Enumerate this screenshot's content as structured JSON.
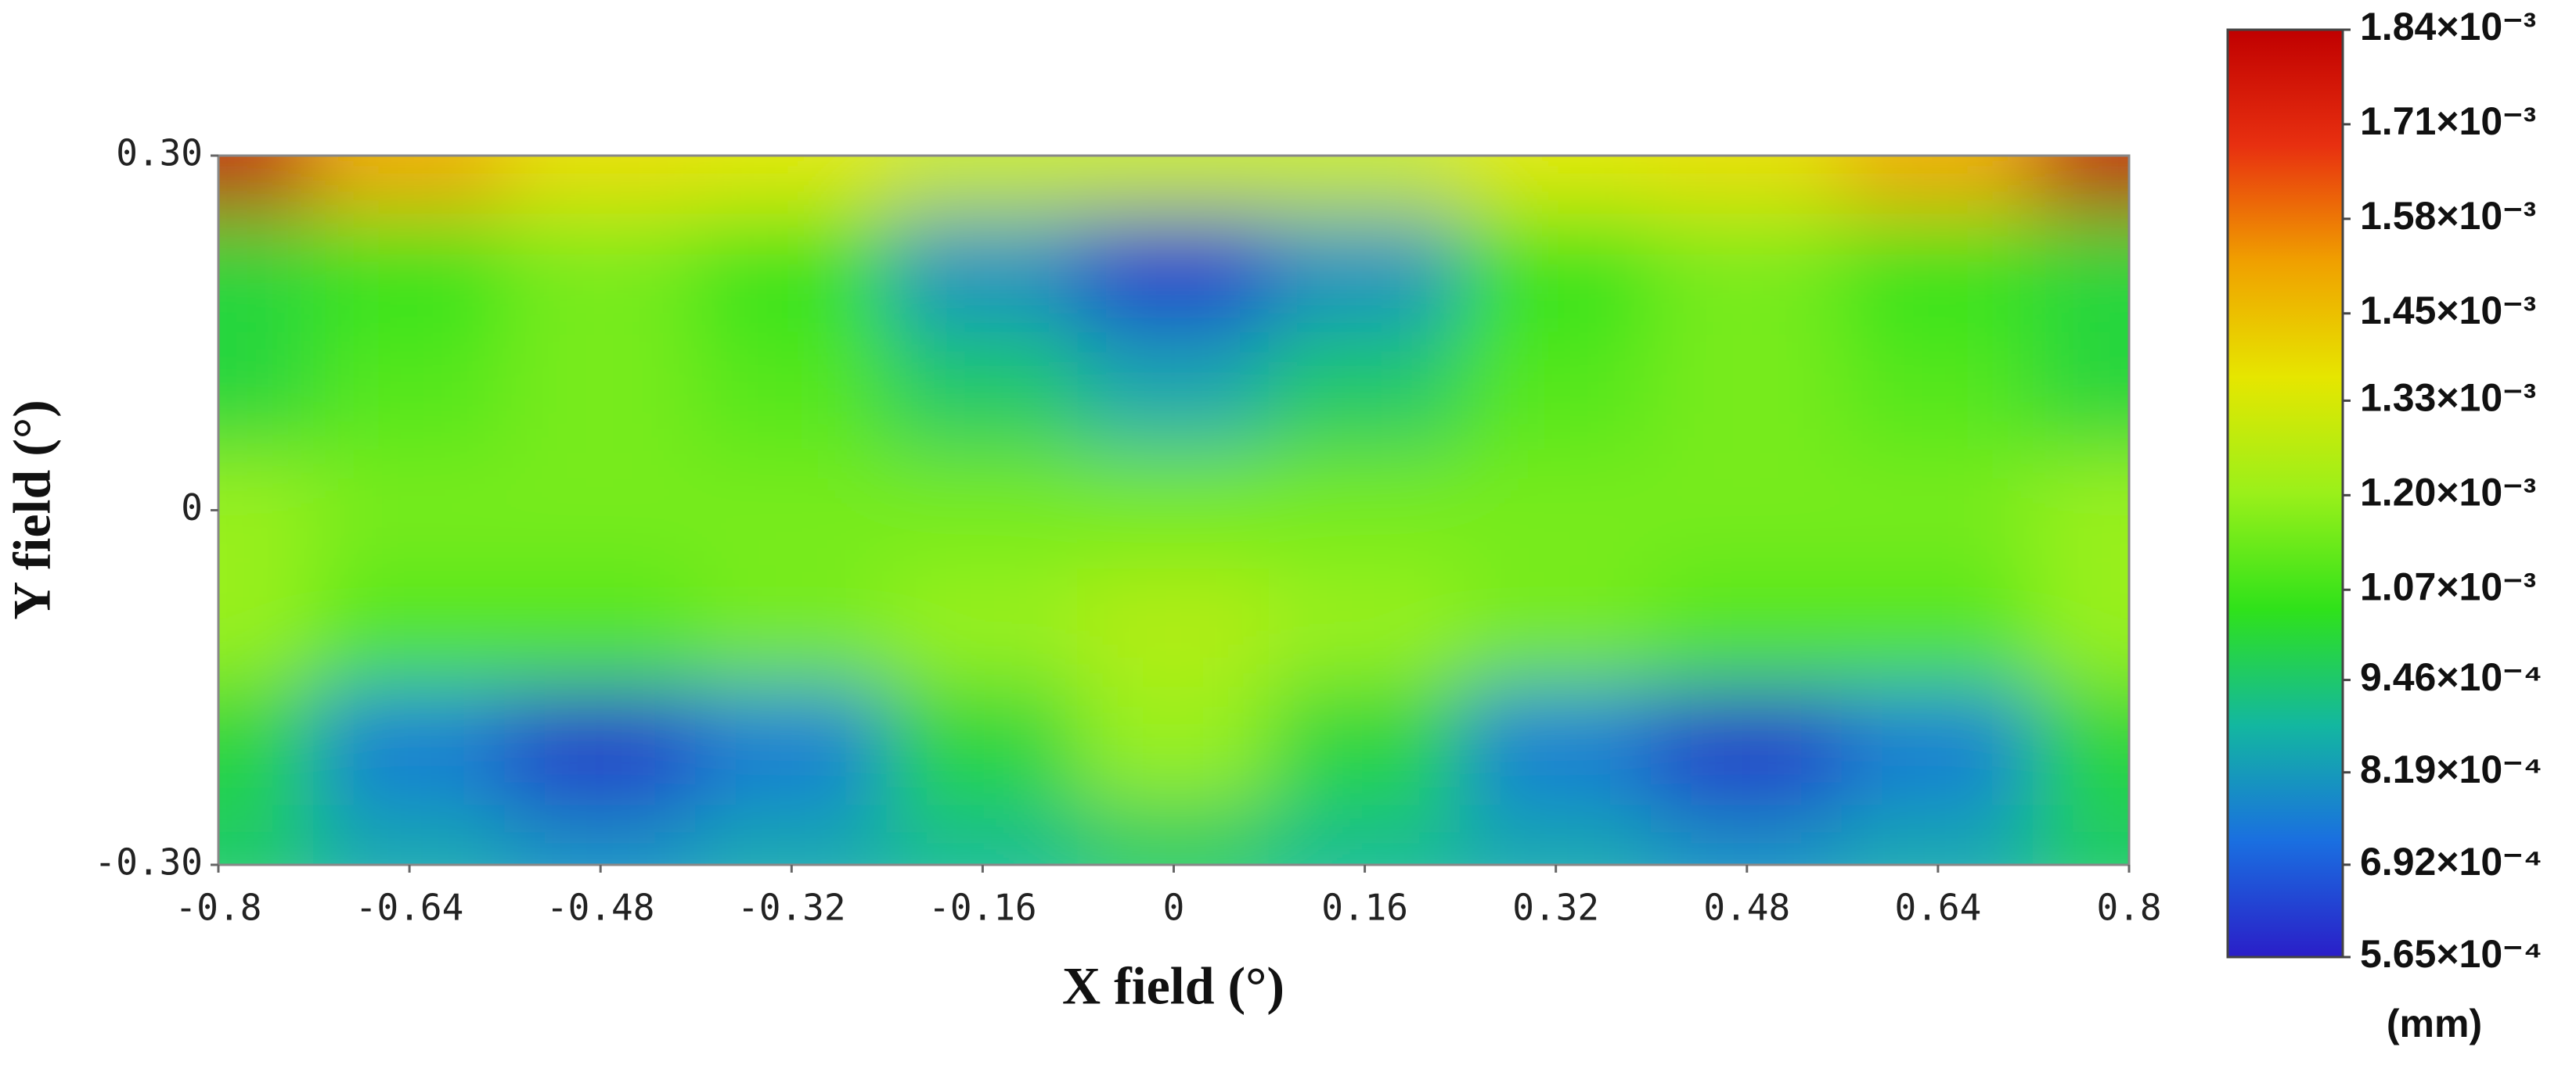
{
  "chart_data": {
    "type": "heatmap",
    "xlabel": "X field (°)",
    "ylabel": "Y field (°)",
    "colorbar_label": "(mm)",
    "x": [
      -0.8,
      -0.64,
      -0.48,
      -0.32,
      -0.16,
      0,
      0.16,
      0.32,
      0.48,
      0.64,
      0.8
    ],
    "y": [
      0.3,
      0.2,
      0.1,
      0,
      -0.1,
      -0.2,
      -0.3
    ],
    "z": [
      [
        0.00184,
        0.0015,
        0.00138,
        0.00135,
        0.0013,
        0.0013,
        0.0013,
        0.00135,
        0.00138,
        0.0015,
        0.00184
      ],
      [
        0.001,
        0.00105,
        0.00115,
        0.00105,
        0.0008,
        0.00062,
        0.0008,
        0.00105,
        0.00115,
        0.00105,
        0.001
      ],
      [
        0.001,
        0.0011,
        0.00115,
        0.0011,
        0.00095,
        0.00085,
        0.00095,
        0.0011,
        0.00115,
        0.0011,
        0.001
      ],
      [
        0.0012,
        0.00115,
        0.00115,
        0.00115,
        0.00115,
        0.00115,
        0.00115,
        0.00115,
        0.00115,
        0.00115,
        0.0012
      ],
      [
        0.0012,
        0.0011,
        0.0011,
        0.00115,
        0.0012,
        0.00125,
        0.0012,
        0.00115,
        0.0011,
        0.0011,
        0.0012
      ],
      [
        0.001,
        0.00075,
        0.0006,
        0.00075,
        0.001,
        0.0012,
        0.001,
        0.00075,
        0.0006,
        0.00075,
        0.001
      ],
      [
        0.00095,
        0.00085,
        0.0008,
        0.00085,
        0.0009,
        0.00095,
        0.0009,
        0.00085,
        0.0008,
        0.00085,
        0.00095
      ]
    ],
    "xlim": [
      -0.8,
      0.8
    ],
    "xticks": [
      -0.8,
      -0.64,
      -0.48,
      -0.32,
      -0.16,
      0,
      0.16,
      0.32,
      0.48,
      0.64,
      0.8
    ],
    "ylim": [
      -0.3,
      0.3
    ],
    "yticks": [
      {
        "value": 0.3,
        "label": "0.30"
      },
      0,
      {
        "value": -0.3,
        "label": "-0.30"
      }
    ],
    "zlim": [
      0.000565,
      0.00184
    ],
    "zticks": [
      {
        "value": 0.00184,
        "label": "1.84×10⁻³"
      },
      {
        "value": 0.00171,
        "label": "1.71×10⁻³"
      },
      {
        "value": 0.00158,
        "label": "1.58×10⁻³"
      },
      {
        "value": 0.00145,
        "label": "1.45×10⁻³"
      },
      {
        "value": 0.00133,
        "label": "1.33×10⁻³"
      },
      {
        "value": 0.0012,
        "label": "1.20×10⁻³"
      },
      {
        "value": 0.00107,
        "label": "1.07×10⁻³"
      },
      {
        "value": 0.000946,
        "label": "9.46×10⁻⁴"
      },
      {
        "value": 0.000819,
        "label": "8.19×10⁻⁴"
      },
      {
        "value": 0.000692,
        "label": "6.92×10⁻⁴"
      },
      {
        "value": 0.000565,
        "label": "5.65×10⁻⁴"
      }
    ],
    "colormap": [
      "#2a1ec8",
      "#1a6fe0",
      "#13b7a0",
      "#2fe21a",
      "#9af01a",
      "#e6e600",
      "#f0a000",
      "#e83010",
      "#c00000"
    ]
  }
}
